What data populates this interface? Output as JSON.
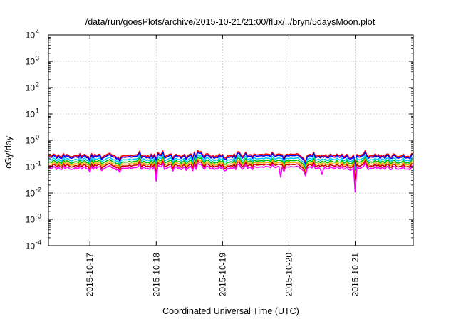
{
  "chart_data": {
    "type": "line",
    "title": "/data/run/goesPlots/archive/2015-10-21/21:00/flux/../bryn/5daysMoon.plot",
    "xlabel": "Coordinated Universal Time (UTC)",
    "ylabel": "cGy/day",
    "yscale": "log",
    "ylim": [
      0.0001,
      10000
    ],
    "xlim": [
      "2015-10-16T09:00",
      "2015-10-21T21:00"
    ],
    "grid": true,
    "y_ticks": [
      {
        "base": "10",
        "exp": "-4"
      },
      {
        "base": "10",
        "exp": "-3"
      },
      {
        "base": "10",
        "exp": "-2"
      },
      {
        "base": "10",
        "exp": "-1"
      },
      {
        "base": "10",
        "exp": "0"
      },
      {
        "base": "10",
        "exp": "1"
      },
      {
        "base": "10",
        "exp": "2"
      },
      {
        "base": "10",
        "exp": "3"
      },
      {
        "base": "10",
        "exp": "4"
      }
    ],
    "x_ticks": [
      {
        "t": "2015-10-17T00:00",
        "label": "2015-10-17"
      },
      {
        "t": "2015-10-18T00:00",
        "label": "2015-10-18"
      },
      {
        "t": "2015-10-19T00:00",
        "label": "2015-10-19"
      },
      {
        "t": "2015-10-20T00:00",
        "label": "2015-10-20"
      },
      {
        "t": "2015-10-21T00:00",
        "label": "2015-10-21"
      }
    ],
    "series": [
      {
        "color": "#ff0000",
        "level": 0.27,
        "dips": [
          {
            "t": "2015-10-18T00:00",
            "value": 0.19
          },
          {
            "t": "2015-10-20T06:00",
            "value": 0.15
          },
          {
            "t": "2015-10-21T00:00",
            "value": 0.13
          }
        ]
      },
      {
        "color": "#0000ff",
        "level": 0.24,
        "dips": [
          {
            "t": "2015-10-18T00:00",
            "value": 0.16
          },
          {
            "t": "2015-10-20T06:00",
            "value": 0.12
          },
          {
            "t": "2015-10-21T00:00",
            "value": 0.1
          }
        ]
      },
      {
        "color": "#00ccff",
        "level": 0.19,
        "dips": [
          {
            "t": "2015-10-18T00:00",
            "value": 0.12
          },
          {
            "t": "2015-10-20T06:00",
            "value": 0.09
          },
          {
            "t": "2015-10-21T00:00",
            "value": 0.07
          }
        ]
      },
      {
        "color": "#00bb00",
        "level": 0.155,
        "dips": [
          {
            "t": "2015-10-18T00:00",
            "value": 0.09
          },
          {
            "t": "2015-10-20T06:00",
            "value": 0.07
          },
          {
            "t": "2015-10-21T00:00",
            "value": 0.05
          }
        ]
      },
      {
        "color": "#ffaa00",
        "level": 0.13,
        "dips": [
          {
            "t": "2015-10-18T00:00",
            "value": 0.07
          },
          {
            "t": "2015-10-20T06:00",
            "value": 0.06
          },
          {
            "t": "2015-10-21T00:00",
            "value": 0.04
          }
        ]
      },
      {
        "color": "#cc0000",
        "level": 0.11,
        "dips": [
          {
            "t": "2015-10-18T00:00",
            "value": 0.05
          },
          {
            "t": "2015-10-20T06:00",
            "value": 0.05
          },
          {
            "t": "2015-10-21T00:00",
            "value": 0.03
          }
        ]
      },
      {
        "color": "#ff00ff",
        "level": 0.09,
        "dips": [
          {
            "t": "2015-10-18T00:00",
            "value": 0.028
          },
          {
            "t": "2015-10-19T21:00",
            "value": 0.04
          },
          {
            "t": "2015-10-20T06:00",
            "value": 0.045
          },
          {
            "t": "2015-10-20T12:00",
            "value": 0.05
          },
          {
            "t": "2015-10-21T00:00",
            "value": 0.011
          }
        ]
      }
    ]
  }
}
